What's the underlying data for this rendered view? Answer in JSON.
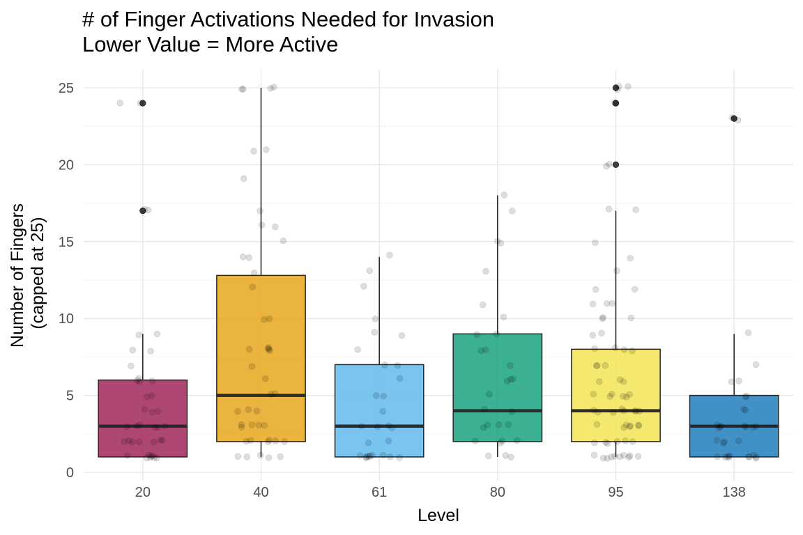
{
  "chart_data": {
    "type": "boxplot",
    "title": "# of Finger Activations Needed for Invasion",
    "subtitle": "Lower Value = More Active",
    "xlabel": "Level",
    "ylabel": [
      "Number of Fingers",
      "(capped at 25)"
    ],
    "ylim": [
      0,
      26.2
    ],
    "yticks": [
      0,
      5,
      10,
      15,
      20,
      25
    ],
    "grid": true,
    "categories": [
      "20",
      "40",
      "61",
      "80",
      "95",
      "138"
    ],
    "colors": [
      "#9e1f55",
      "#e7a313",
      "#5cb8ec",
      "#109f7b",
      "#f3e34f",
      "#1879b9"
    ],
    "boxes": [
      {
        "level": "20",
        "q1": 1,
        "median": 3,
        "q3": 6,
        "whisker_low": 1,
        "whisker_high": 9,
        "outliers": [
          17,
          24
        ]
      },
      {
        "level": "40",
        "q1": 2,
        "median": 5,
        "q3": 12.8,
        "whisker_low": 1,
        "whisker_high": 25,
        "outliers": []
      },
      {
        "level": "61",
        "q1": 1,
        "median": 3,
        "q3": 7,
        "whisker_low": 1,
        "whisker_high": 14,
        "outliers": []
      },
      {
        "level": "80",
        "q1": 2,
        "median": 4,
        "q3": 9,
        "whisker_low": 1,
        "whisker_high": 18,
        "outliers": []
      },
      {
        "level": "95",
        "q1": 2,
        "median": 4,
        "q3": 8,
        "whisker_low": 1,
        "whisker_high": 17,
        "outliers": [
          20,
          24,
          25
        ]
      },
      {
        "level": "138",
        "q1": 1,
        "median": 3,
        "q3": 5,
        "whisker_low": 1,
        "whisker_high": 9,
        "outliers": [
          23
        ]
      }
    ],
    "points": [
      {
        "level": "20",
        "values": [
          1,
          1,
          1,
          1,
          1,
          1,
          1,
          1,
          2,
          2,
          2,
          2,
          2,
          2,
          2,
          3,
          3,
          3,
          3,
          3,
          3,
          4,
          4,
          4,
          5,
          5,
          6,
          6,
          6,
          6,
          7,
          8,
          8,
          9,
          9,
          17,
          17,
          24,
          24
        ]
      },
      {
        "level": "40",
        "values": [
          1,
          1,
          1,
          1,
          1,
          2,
          2,
          2,
          2,
          2,
          2,
          3,
          3,
          3,
          3,
          3,
          4,
          4,
          4,
          5,
          5,
          6,
          7,
          8,
          8,
          8,
          8,
          8,
          10,
          10,
          12,
          13,
          14,
          14,
          15,
          16,
          16,
          17,
          19,
          21,
          21,
          25,
          25,
          25,
          25
        ]
      },
      {
        "level": "61",
        "values": [
          1,
          1,
          1,
          1,
          1,
          1,
          1,
          1,
          1,
          1,
          2,
          2,
          3,
          3,
          3,
          3,
          4,
          5,
          5,
          6,
          7,
          7,
          8,
          9,
          9,
          10,
          12,
          13,
          14
        ]
      },
      {
        "level": "80",
        "values": [
          1,
          1,
          1,
          2,
          2,
          2,
          2,
          3,
          3,
          3,
          3,
          4,
          4,
          5,
          6,
          6,
          6,
          7,
          8,
          8,
          9,
          9,
          10,
          11,
          13,
          15,
          15,
          17,
          18
        ]
      },
      {
        "level": "95",
        "values": [
          1,
          1,
          1,
          1,
          1,
          1,
          1,
          1,
          1,
          1,
          2,
          2,
          2,
          2,
          2,
          2,
          3,
          3,
          3,
          3,
          3,
          3,
          3,
          4,
          4,
          4,
          4,
          4,
          4,
          4,
          4,
          5,
          5,
          5,
          5,
          5,
          5,
          6,
          6,
          6,
          7,
          7,
          7,
          8,
          8,
          8,
          8,
          9,
          9,
          10,
          10,
          10,
          11,
          11,
          11,
          12,
          12,
          13,
          14,
          15,
          17,
          17,
          20,
          20,
          24,
          24,
          25,
          25,
          25
        ]
      },
      {
        "level": "138",
        "values": [
          1,
          1,
          1,
          1,
          1,
          1,
          1,
          1,
          1,
          1,
          2,
          2,
          2,
          2,
          3,
          3,
          3,
          3,
          3,
          3,
          3,
          3,
          4,
          4,
          5,
          5,
          6,
          6,
          7,
          9,
          23,
          23
        ]
      }
    ]
  }
}
